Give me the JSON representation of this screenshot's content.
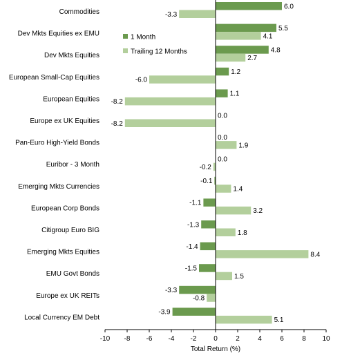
{
  "chart_data": {
    "type": "bar",
    "orientation": "horizontal",
    "title": "",
    "xlabel": "Total Return (%)",
    "ylabel": "",
    "xlim": [
      -10,
      10
    ],
    "xticks": [
      -10,
      -8,
      -6,
      -4,
      -2,
      0,
      2,
      4,
      6,
      8,
      10
    ],
    "grid": false,
    "legend_position": "inside-left",
    "categories": [
      "Commodities",
      "Dev Mkts Equities ex EMU",
      "Dev Mkts Equities",
      "European Small-Cap Equities",
      "European Equities",
      "Europe ex UK Equities",
      "Pan-Euro High-Yield Bonds",
      "Euribor - 3 Month",
      "Emerging Mkts Currencies",
      "European Corp Bonds",
      "Citigroup Euro BIG",
      "Emerging Mkts Equities",
      "EMU Govt Bonds",
      "Europe ex UK REITs",
      "Local Currency EM Debt"
    ],
    "series": [
      {
        "name": "1 Month",
        "color": "#6b9a4e",
        "values": [
          6.0,
          5.5,
          4.8,
          1.2,
          1.1,
          0.0,
          0.0,
          0.0,
          -0.1,
          -1.1,
          -1.3,
          -1.4,
          -1.5,
          -3.3,
          -3.9
        ],
        "labels": [
          "6.0",
          "5.5",
          "4.8",
          "1.2",
          "1.1",
          "0.0",
          "0.0",
          "0.0",
          "-0.1",
          "-1.1",
          "-1.3",
          "-1.4",
          "-1.5",
          "-3.3",
          "-3.9"
        ]
      },
      {
        "name": "Trailing 12 Months",
        "color": "#b3cf9c",
        "values": [
          -3.3,
          4.1,
          2.7,
          -6.0,
          -8.2,
          -8.2,
          1.9,
          -0.2,
          1.4,
          3.2,
          1.8,
          8.4,
          1.5,
          -0.8,
          5.1
        ],
        "labels": [
          "-3.3",
          "4.1",
          "2.7",
          "-6.0",
          "-8.2",
          "-8.2",
          "1.9",
          "-0.2",
          "1.4",
          "3.2",
          "1.8",
          "8.4",
          "1.5",
          "-0.8",
          "5.1"
        ]
      }
    ]
  }
}
